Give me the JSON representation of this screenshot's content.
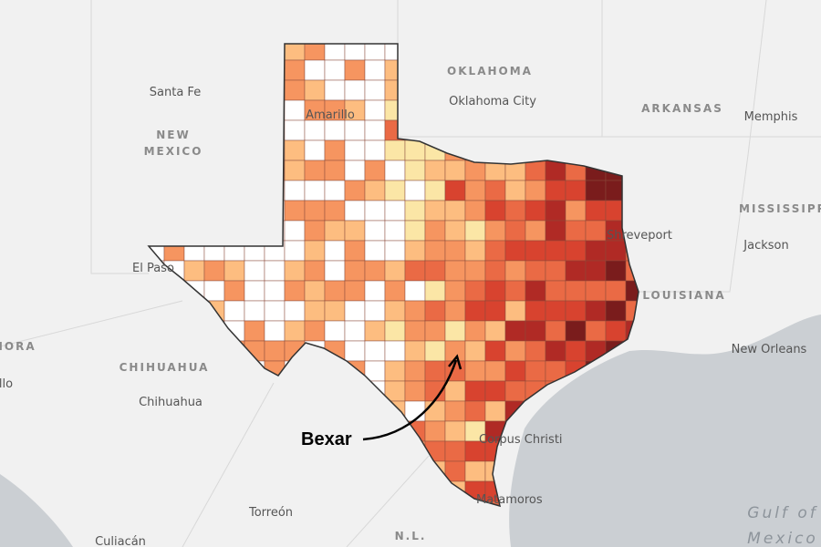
{
  "labels": [
    "OKLAHOMA",
    "Oklahoma City",
    "Santa Fe",
    "NEW",
    "MEXICO",
    "Amarillo",
    "ARKANSAS",
    "Memphis",
    "MISSISSIPPI",
    "Jackson",
    "Shreveport",
    "LOUISIANA",
    "New Orleans",
    "El Paso",
    "CHIHUAHUA",
    "Chihuahua",
    "Torreón",
    "Culiacán",
    "N.L.",
    "Corpus Christi",
    "Matamoros",
    "Gulf of",
    "Mexico",
    "SONORA",
    "Hermosillo"
  ],
  "annotation": "Bexar"
}
